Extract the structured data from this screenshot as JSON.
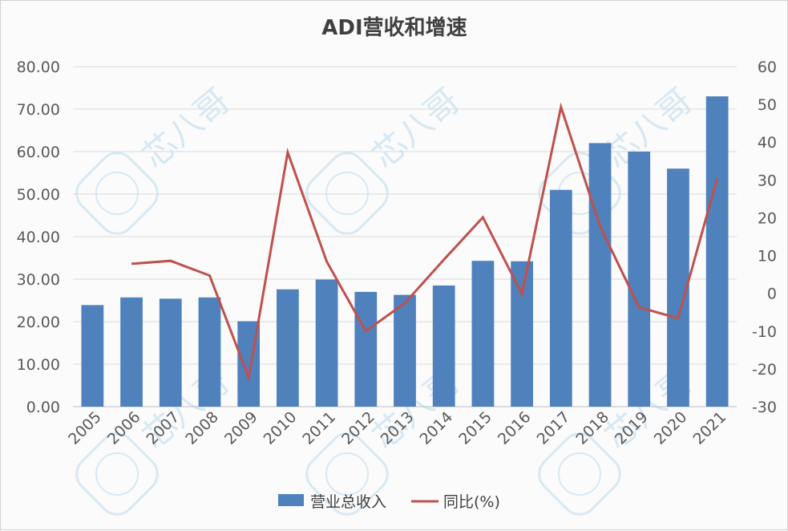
{
  "chart_data": {
    "type": "bar+line",
    "title": "ADI营收和增速",
    "categories": [
      "2005",
      "2006",
      "2007",
      "2008",
      "2009",
      "2010",
      "2011",
      "2012",
      "2013",
      "2014",
      "2015",
      "2016",
      "2017",
      "2018",
      "2019",
      "2020",
      "2021"
    ],
    "series": [
      {
        "name": "营业总收入",
        "type": "bar",
        "axis": "left",
        "color": "#4f81bd",
        "values": [
          23.9,
          25.7,
          25.4,
          25.7,
          20.1,
          27.6,
          29.9,
          27.0,
          26.3,
          28.5,
          34.3,
          34.2,
          51.0,
          62.0,
          60.0,
          56.0,
          73.0
        ]
      },
      {
        "name": "同比(%)",
        "type": "line",
        "axis": "right",
        "color": "#c0504d",
        "values": [
          null,
          7.8,
          8.6,
          4.7,
          -22.3,
          37.3,
          8.4,
          -10.0,
          -2.6,
          8.9,
          20.1,
          -0.2,
          49.3,
          17.8,
          -3.7,
          -6.6,
          30.4
        ]
      }
    ],
    "y_left": {
      "range": [
        0,
        80
      ],
      "ticks": [
        "0.00",
        "10.00",
        "20.00",
        "30.00",
        "40.00",
        "50.00",
        "60.00",
        "70.00",
        "80.00"
      ]
    },
    "y_right": {
      "range": [
        -30,
        60
      ],
      "ticks": [
        "-30",
        "-20",
        "-10",
        "0",
        "10",
        "20",
        "30",
        "40",
        "50",
        "60"
      ]
    },
    "grid": true,
    "legend_position": "bottom",
    "watermark_text": "芯八哥"
  }
}
